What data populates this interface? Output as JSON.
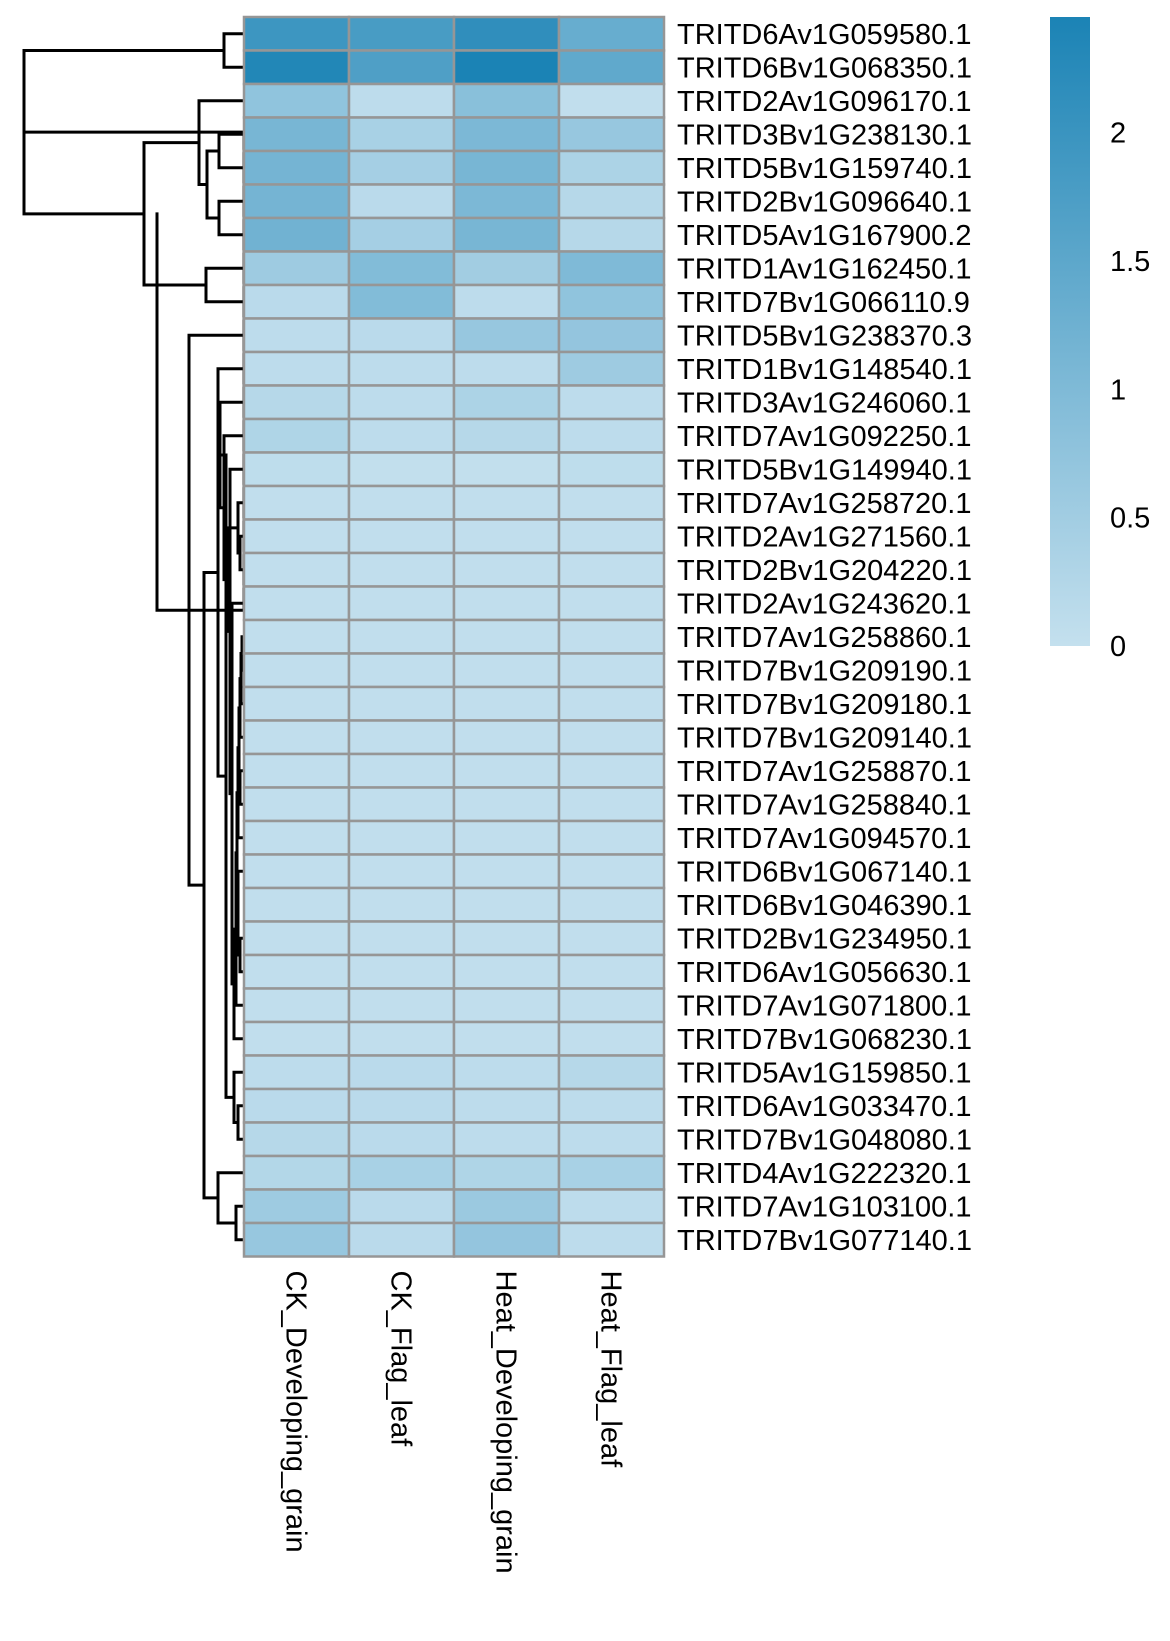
{
  "chart_data": {
    "type": "heatmap",
    "title": "",
    "columns": [
      "CK_Developing_grain",
      "CK_Flag_leaf",
      "Heat_Developing_grain",
      "Heat_Flag_leaf"
    ],
    "rows": [
      "TRITD6Av1G059580.1",
      "TRITD6Bv1G068350.1",
      "TRITD2Av1G096170.1",
      "TRITD3Bv1G238130.1",
      "TRITD5Bv1G159740.1",
      "TRITD2Bv1G096640.1",
      "TRITD5Av1G167900.2",
      "TRITD1Av1G162450.1",
      "TRITD7Bv1G066110.9",
      "TRITD5Bv1G238370.3",
      "TRITD1Bv1G148540.1",
      "TRITD3Av1G246060.1",
      "TRITD7Av1G092250.1",
      "TRITD5Bv1G149940.1",
      "TRITD7Av1G258720.1",
      "TRITD2Av1G271560.1",
      "TRITD2Bv1G204220.1",
      "TRITD2Av1G243620.1",
      "TRITD7Av1G258860.1",
      "TRITD7Bv1G209190.1",
      "TRITD7Bv1G209180.1",
      "TRITD7Bv1G209140.1",
      "TRITD7Av1G258870.1",
      "TRITD7Av1G258840.1",
      "TRITD7Av1G094570.1",
      "TRITD6Bv1G067140.1",
      "TRITD6Bv1G046390.1",
      "TRITD2Bv1G234950.1",
      "TRITD6Av1G056630.1",
      "TRITD7Av1G071800.1",
      "TRITD7Bv1G068230.1",
      "TRITD5Av1G159850.1",
      "TRITD6Av1G033470.1",
      "TRITD7Bv1G048080.1",
      "TRITD4Av1G222320.1",
      "TRITD7Av1G103100.1",
      "TRITD7Bv1G077140.1"
    ],
    "values": [
      [
        1.95,
        1.8,
        2.15,
        1.35
      ],
      [
        2.35,
        1.7,
        2.45,
        1.45
      ],
      [
        0.75,
        0.1,
        0.85,
        0.05
      ],
      [
        1.1,
        0.4,
        1.05,
        0.65
      ],
      [
        1.15,
        0.45,
        1.1,
        0.35
      ],
      [
        1.15,
        0.15,
        1.05,
        0.2
      ],
      [
        1.2,
        0.45,
        1.1,
        0.2
      ],
      [
        0.55,
        0.95,
        0.5,
        1.0
      ],
      [
        0.15,
        0.95,
        0.1,
        0.75
      ],
      [
        0.1,
        0.15,
        0.65,
        0.7
      ],
      [
        0.1,
        0.1,
        0.1,
        0.55
      ],
      [
        0.2,
        0.1,
        0.35,
        0.1
      ],
      [
        0.3,
        0.1,
        0.2,
        0.1
      ],
      [
        0.08,
        0.03,
        0.03,
        0.08
      ],
      [
        0.05,
        0.05,
        0.05,
        0.05
      ],
      [
        0.05,
        0.05,
        0.05,
        0.05
      ],
      [
        0.05,
        0.05,
        0.05,
        0.05
      ],
      [
        0.05,
        0.05,
        0.05,
        0.05
      ],
      [
        0.05,
        0.05,
        0.05,
        0.05
      ],
      [
        0.05,
        0.05,
        0.05,
        0.05
      ],
      [
        0.05,
        0.05,
        0.05,
        0.05
      ],
      [
        0.05,
        0.05,
        0.05,
        0.05
      ],
      [
        0.05,
        0.05,
        0.05,
        0.05
      ],
      [
        0.05,
        0.05,
        0.05,
        0.05
      ],
      [
        0.05,
        0.05,
        0.05,
        0.05
      ],
      [
        0.05,
        0.05,
        0.05,
        0.05
      ],
      [
        0.05,
        0.05,
        0.05,
        0.05
      ],
      [
        0.05,
        0.05,
        0.05,
        0.05
      ],
      [
        0.05,
        0.05,
        0.05,
        0.05
      ],
      [
        0.05,
        0.05,
        0.05,
        0.05
      ],
      [
        0.05,
        0.05,
        0.05,
        0.05
      ],
      [
        0.1,
        0.15,
        0.1,
        0.2
      ],
      [
        0.15,
        0.15,
        0.1,
        0.1
      ],
      [
        0.2,
        0.15,
        0.1,
        0.1
      ],
      [
        0.25,
        0.4,
        0.3,
        0.4
      ],
      [
        0.55,
        0.15,
        0.6,
        0.1
      ],
      [
        0.65,
        0.15,
        0.7,
        0.1
      ]
    ],
    "color_scale": {
      "min": 0,
      "max": 2.45,
      "low_color": "#c4e0ee",
      "high_color": "#1b83b5"
    },
    "cell_border_color": "#969696",
    "legend": {
      "placement": "right",
      "ticks": [
        {
          "value": 0,
          "label": "0"
        },
        {
          "value": 0.5,
          "label": "0.5"
        },
        {
          "value": 1,
          "label": "1"
        },
        {
          "value": 1.5,
          "label": "1.5"
        },
        {
          "value": 2,
          "label": "2"
        }
      ]
    },
    "row_dendrogram": true,
    "column_dendrogram": false
  }
}
